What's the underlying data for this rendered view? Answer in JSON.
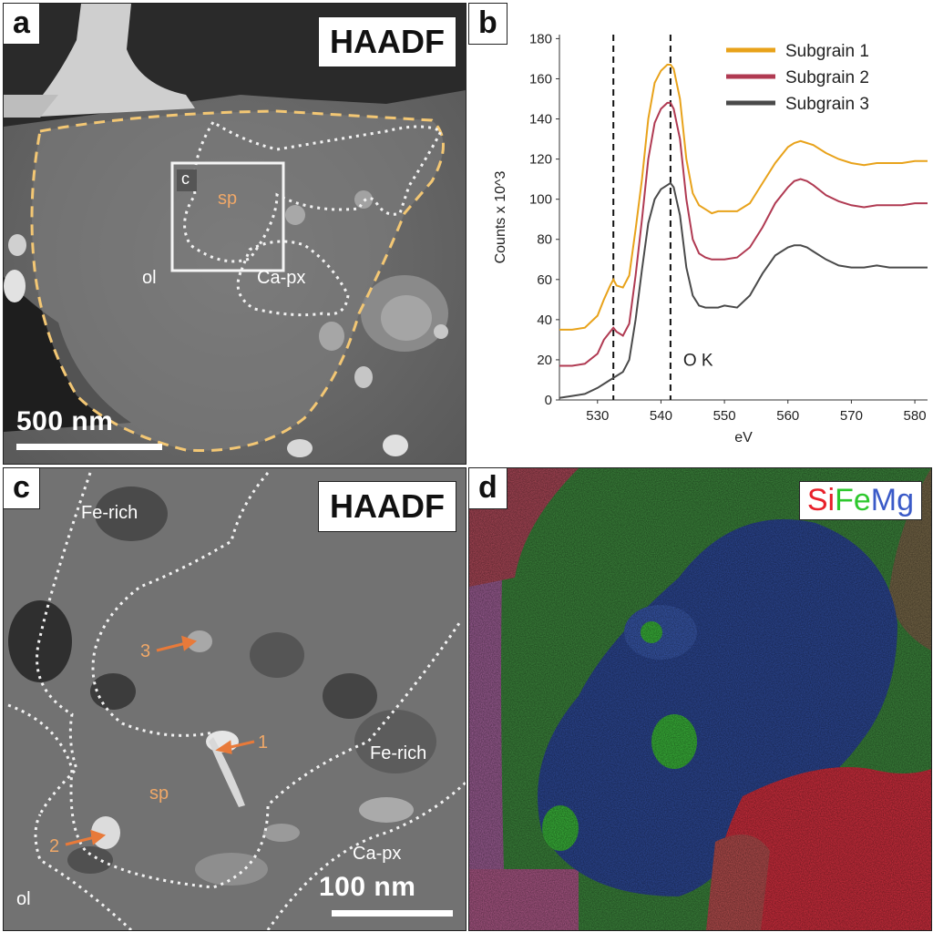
{
  "panels": {
    "a": {
      "letter": "a",
      "label": "HAADF",
      "scalebar": "500 nm",
      "regions": {
        "sp": "sp",
        "ol": "ol",
        "ca_px": "Ca-px",
        "inset": "c"
      }
    },
    "b": {
      "letter": "b"
    },
    "c": {
      "letter": "c",
      "label": "HAADF",
      "scalebar": "100 nm",
      "regions": {
        "fe_rich_1": "Fe-rich",
        "fe_rich_2": "Fe-rich",
        "ca_px": "Ca-px",
        "sp": "sp",
        "ol": "ol"
      },
      "arrows": [
        "1",
        "2",
        "3"
      ]
    },
    "d": {
      "letter": "d",
      "elements": {
        "si": "Si",
        "fe": "Fe",
        "mg": "Mg"
      }
    }
  },
  "colors": {
    "subgrain1": "#e8a21a",
    "subgrain2": "#b03a52",
    "subgrain3": "#4a4a4a",
    "outline_yellow": "#f3c774",
    "arrow_orange": "#e87a3a",
    "si": "#e8202a",
    "fe": "#2ec82e",
    "mg": "#3a5ac8"
  },
  "chart_data": {
    "type": "line",
    "xlabel": "eV",
    "ylabel": "Counts x 10^3",
    "xlim": [
      524,
      582
    ],
    "ylim": [
      0,
      182
    ],
    "xticks": [
      530,
      540,
      550,
      560,
      570,
      580
    ],
    "yticks": [
      0,
      20,
      40,
      60,
      80,
      100,
      120,
      140,
      160,
      180
    ],
    "vlines": [
      532.5,
      541.5
    ],
    "annotations": [
      {
        "text": "O K",
        "x": 543.5,
        "y": 17
      }
    ],
    "legend": "top-right",
    "grid": false,
    "series": [
      {
        "name": "Subgrain 1",
        "color": "#e8a21a",
        "x": [
          524,
          526,
          528,
          530,
          531,
          532,
          532.5,
          533,
          534,
          535,
          536,
          537,
          538,
          539,
          540,
          541,
          541.5,
          542,
          543,
          544,
          545,
          546,
          547,
          548,
          549,
          550,
          552,
          554,
          556,
          558,
          560,
          561,
          562,
          563,
          564,
          566,
          568,
          570,
          572,
          574,
          576,
          578,
          580,
          582
        ],
        "y": [
          35,
          35,
          36,
          42,
          50,
          57,
          60,
          57,
          56,
          62,
          85,
          110,
          140,
          158,
          164,
          167,
          167,
          165,
          150,
          120,
          103,
          97,
          95,
          93,
          94,
          94,
          94,
          98,
          108,
          118,
          126,
          128,
          129,
          128,
          127,
          123,
          120,
          118,
          117,
          118,
          118,
          118,
          119,
          119
        ]
      },
      {
        "name": "Subgrain 2",
        "color": "#b03a52",
        "x": [
          524,
          526,
          528,
          530,
          531,
          532,
          532.5,
          533,
          534,
          535,
          536,
          537,
          538,
          539,
          540,
          541,
          541.5,
          542,
          543,
          544,
          545,
          546,
          547,
          548,
          549,
          550,
          552,
          554,
          556,
          558,
          560,
          561,
          562,
          563,
          564,
          566,
          568,
          570,
          572,
          574,
          576,
          578,
          580,
          582
        ],
        "y": [
          17,
          17,
          18,
          23,
          30,
          34,
          36,
          34,
          32,
          38,
          62,
          90,
          120,
          138,
          145,
          148,
          148,
          145,
          130,
          100,
          80,
          73,
          71,
          70,
          70,
          70,
          71,
          76,
          86,
          98,
          106,
          109,
          110,
          109,
          107,
          102,
          99,
          97,
          96,
          97,
          97,
          97,
          98,
          98
        ]
      },
      {
        "name": "Subgrain 3",
        "color": "#4a4a4a",
        "x": [
          524,
          526,
          528,
          530,
          531,
          532,
          532.5,
          533,
          534,
          535,
          536,
          537,
          538,
          539,
          540,
          541,
          541.5,
          542,
          543,
          544,
          545,
          546,
          547,
          548,
          549,
          550,
          552,
          554,
          556,
          558,
          560,
          561,
          562,
          563,
          564,
          566,
          568,
          570,
          572,
          574,
          576,
          578,
          580,
          582
        ],
        "y": [
          1,
          2,
          3,
          6,
          8,
          10,
          11,
          12,
          14,
          20,
          40,
          65,
          88,
          100,
          105,
          107,
          108,
          106,
          92,
          66,
          52,
          47,
          46,
          46,
          46,
          47,
          46,
          52,
          63,
          72,
          76,
          77,
          77,
          76,
          74,
          70,
          67,
          66,
          66,
          67,
          66,
          66,
          66,
          66
        ]
      }
    ]
  }
}
